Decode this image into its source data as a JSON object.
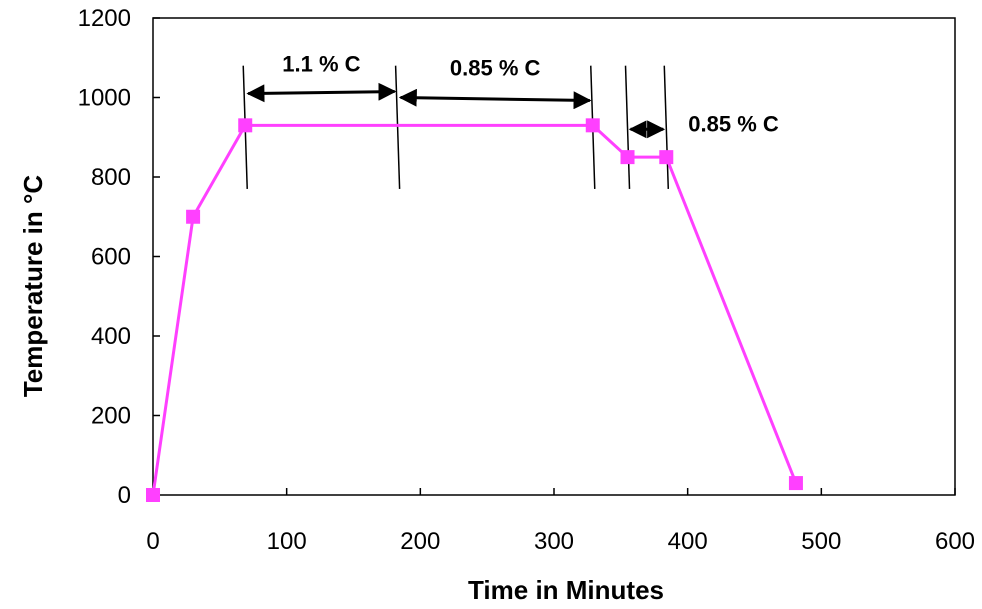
{
  "chart_data": {
    "type": "line",
    "xlabel": "Time in Minutes",
    "ylabel": "Temperature in °C",
    "xlim": [
      0,
      600
    ],
    "ylim": [
      0,
      1200
    ],
    "xticks": [
      0,
      100,
      200,
      300,
      400,
      500,
      600
    ],
    "yticks": [
      0,
      200,
      400,
      600,
      800,
      1000,
      1200
    ],
    "grid": false,
    "series": [
      {
        "color": "#ff40ff",
        "marker": "square",
        "x": [
          0,
          30,
          69,
          329,
          355,
          384,
          481
        ],
        "y": [
          0,
          700,
          930,
          930,
          850,
          850,
          30
        ]
      }
    ],
    "annotations": [
      {
        "text": "1.1 % C",
        "x_from": 69,
        "x_to": 183,
        "y": 1010
      },
      {
        "text": "0.85 % C",
        "x_from": 183,
        "x_to": 329,
        "y": 1000
      },
      {
        "text": "0.85 % C",
        "x_from": 355,
        "x_to": 384,
        "y": 920
      }
    ]
  }
}
